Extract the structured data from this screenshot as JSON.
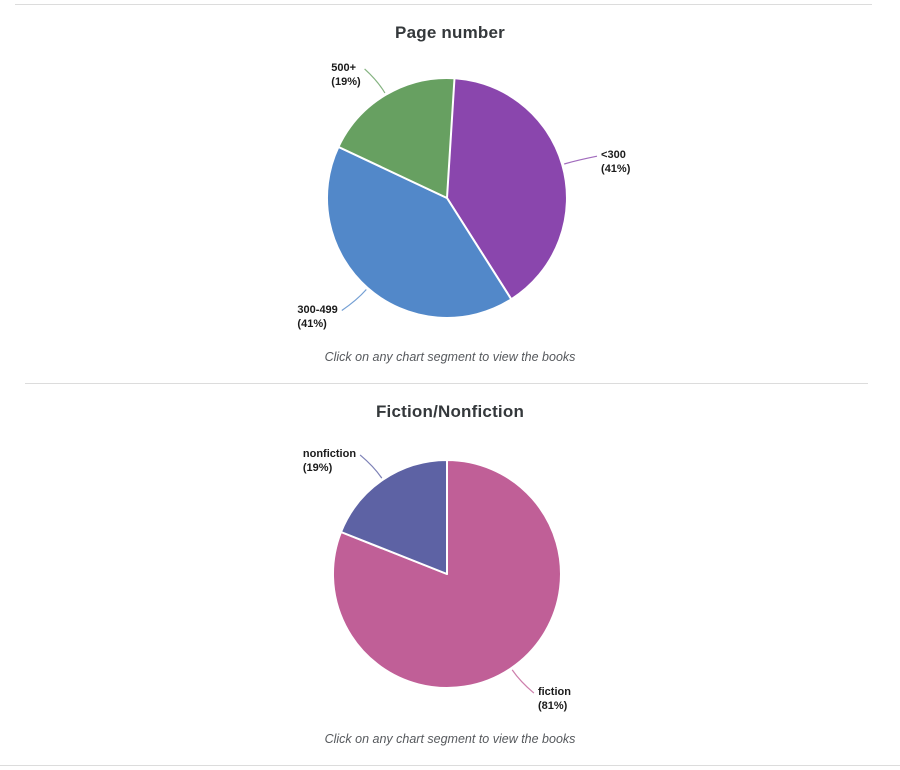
{
  "page": {
    "background": "#ffffff",
    "divider_color": "#dcdcdc",
    "title_color": "#34383b",
    "caption_color": "#56595d",
    "label_color": "#1b1b1b"
  },
  "chart_data": [
    {
      "type": "pie",
      "title": "Page number",
      "caption": "Click on any chart segment to view the books",
      "start_angle": "12-oclock",
      "direction": "clockwise",
      "slice_border_color": "#ffffff",
      "slices": [
        {
          "label": "<300",
          "pct": 41,
          "color": "#8a46ad"
        },
        {
          "label": "300-499",
          "pct": 41,
          "color": "#5288c9"
        },
        {
          "label": "500+",
          "pct": 19,
          "color": "#67a061"
        }
      ]
    },
    {
      "type": "pie",
      "title": "Fiction/Nonfiction",
      "caption": "Click on any chart segment to view the books",
      "start_angle": "12-oclock",
      "direction": "clockwise",
      "slice_border_color": "#ffffff",
      "slices": [
        {
          "label": "fiction",
          "pct": 81,
          "color": "#c05f97"
        },
        {
          "label": "nonfiction",
          "pct": 19,
          "color": "#5d62a4"
        }
      ]
    }
  ]
}
